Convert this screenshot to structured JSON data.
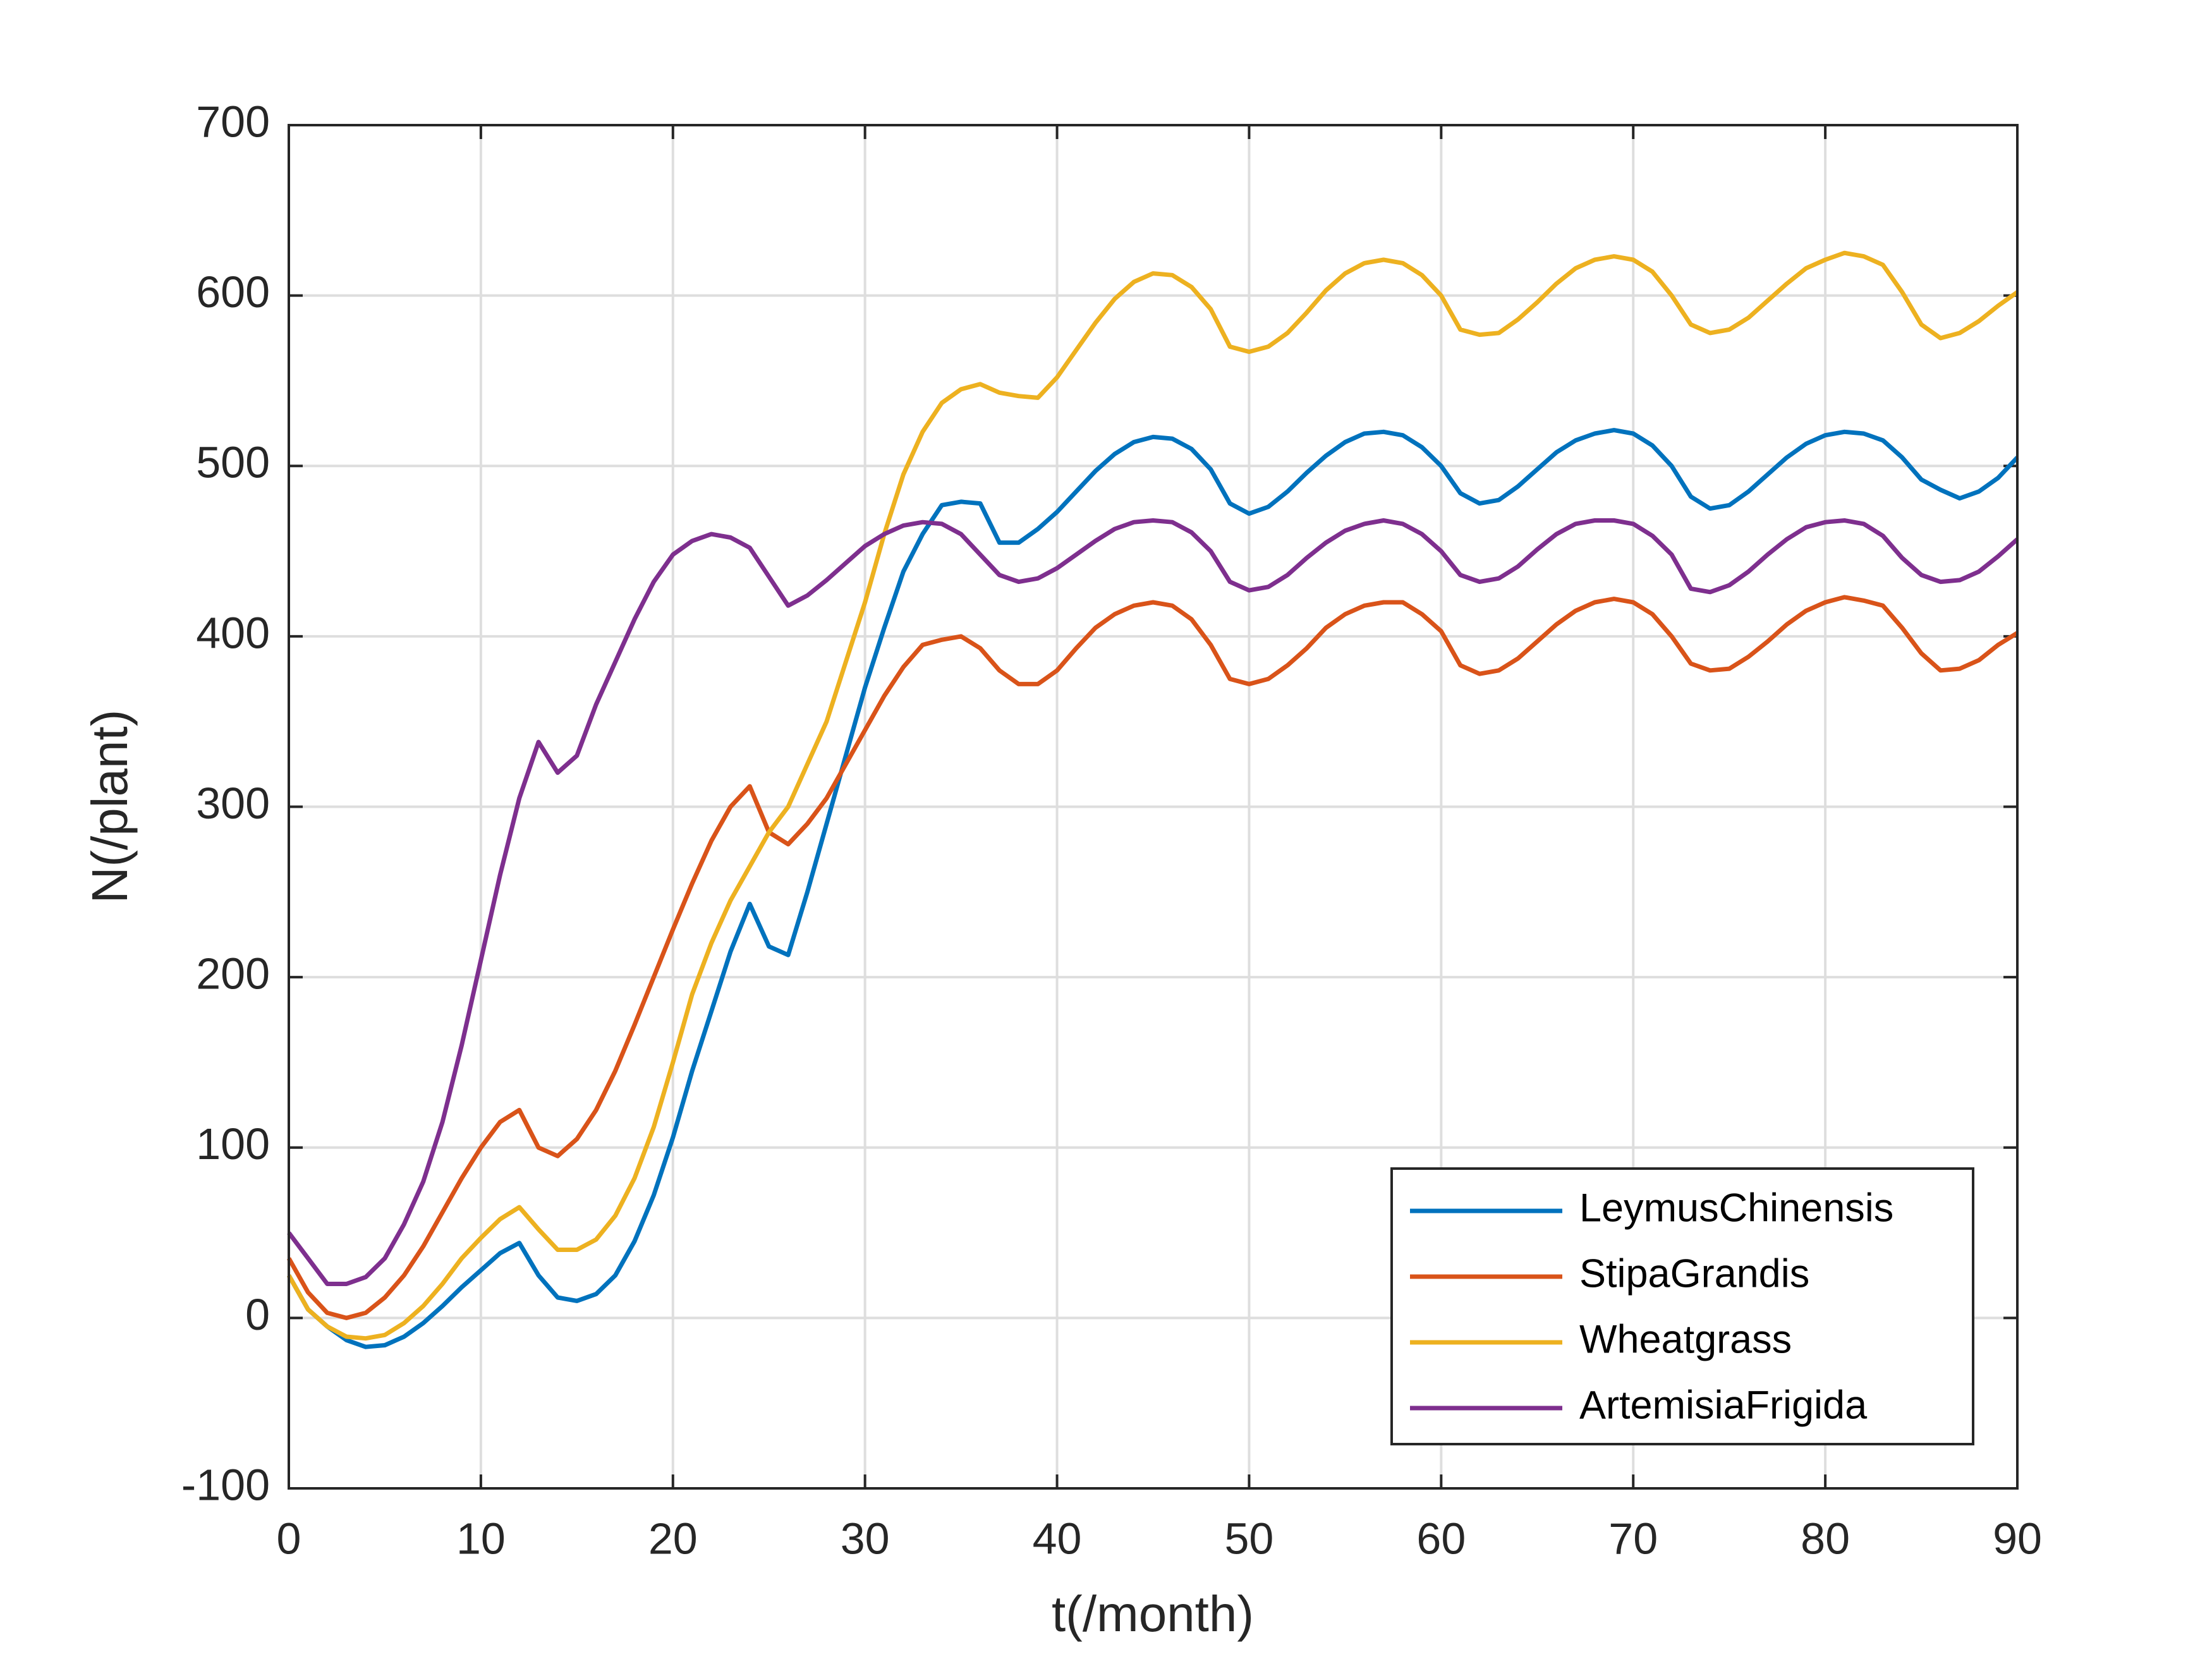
{
  "chart_data": {
    "type": "line",
    "xlabel": "t(/month)",
    "ylabel": "N(/plant)",
    "x": [
      0,
      1,
      2,
      3,
      4,
      5,
      6,
      7,
      8,
      9,
      10,
      11,
      12,
      13,
      14,
      15,
      16,
      17,
      18,
      19,
      20,
      21,
      22,
      23,
      24,
      25,
      26,
      27,
      28,
      29,
      30,
      31,
      32,
      33,
      34,
      35,
      36,
      37,
      38,
      39,
      40,
      41,
      42,
      43,
      44,
      45,
      46,
      47,
      48,
      49,
      50,
      51,
      52,
      53,
      54,
      55,
      56,
      57,
      58,
      59,
      60,
      61,
      62,
      63,
      64,
      65,
      66,
      67,
      68,
      69,
      70,
      71,
      72,
      73,
      74,
      75,
      76,
      77,
      78,
      79,
      80,
      81,
      82,
      83,
      84,
      85,
      86,
      87,
      88,
      89,
      90
    ],
    "series": [
      {
        "name": "LeymusChinensis",
        "color": "#0072BD",
        "values": [
          25,
          5,
          -5,
          -13,
          -17,
          -16,
          -11,
          -3,
          7,
          18,
          28,
          38,
          44,
          25,
          12,
          10,
          14,
          25,
          45,
          72,
          106,
          145,
          180,
          215,
          243,
          218,
          213,
          250,
          290,
          330,
          370,
          405,
          438,
          460,
          477,
          479,
          478,
          455,
          455,
          463,
          473,
          485,
          497,
          507,
          514,
          517,
          516,
          510,
          498,
          478,
          472,
          476,
          485,
          496,
          506,
          514,
          519,
          520,
          518,
          511,
          500,
          484,
          478,
          480,
          488,
          498,
          508,
          515,
          519,
          521,
          519,
          512,
          500,
          482,
          475,
          477,
          485,
          495,
          505,
          513,
          518,
          520,
          519,
          515,
          505,
          492,
          486,
          481,
          485,
          493,
          505
        ]
      },
      {
        "name": "StipaGrandis",
        "color": "#D95319",
        "values": [
          35,
          15,
          3,
          0,
          3,
          12,
          25,
          42,
          62,
          82,
          100,
          115,
          122,
          100,
          95,
          105,
          122,
          145,
          172,
          200,
          228,
          255,
          280,
          300,
          312,
          285,
          278,
          290,
          305,
          325,
          345,
          365,
          382,
          395,
          398,
          400,
          393,
          380,
          372,
          372,
          380,
          393,
          405,
          413,
          418,
          420,
          418,
          410,
          395,
          375,
          372,
          375,
          383,
          393,
          405,
          413,
          418,
          420,
          420,
          413,
          403,
          383,
          378,
          380,
          387,
          397,
          407,
          415,
          420,
          422,
          420,
          413,
          400,
          384,
          380,
          381,
          388,
          397,
          407,
          415,
          420,
          423,
          421,
          418,
          405,
          390,
          380,
          381,
          386,
          395,
          402
        ]
      },
      {
        "name": "Wheatgrass",
        "color": "#EDB120",
        "values": [
          25,
          5,
          -5,
          -11,
          -12,
          -10,
          -3,
          7,
          20,
          35,
          47,
          58,
          65,
          52,
          40,
          40,
          46,
          60,
          82,
          112,
          150,
          190,
          220,
          245,
          265,
          285,
          300,
          325,
          350,
          385,
          420,
          460,
          495,
          520,
          537,
          545,
          548,
          543,
          541,
          540,
          552,
          568,
          584,
          598,
          608,
          613,
          612,
          605,
          592,
          570,
          567,
          570,
          578,
          590,
          603,
          613,
          619,
          621,
          619,
          612,
          600,
          580,
          577,
          578,
          586,
          596,
          607,
          616,
          621,
          623,
          621,
          614,
          600,
          583,
          578,
          580,
          587,
          597,
          607,
          616,
          621,
          625,
          623,
          618,
          602,
          583,
          575,
          578,
          585,
          594,
          602
        ]
      },
      {
        "name": "ArtemisiaFrigida",
        "color": "#7E2F8E",
        "values": [
          50,
          35,
          20,
          20,
          24,
          35,
          55,
          80,
          115,
          160,
          210,
          260,
          305,
          338,
          320,
          330,
          360,
          385,
          410,
          432,
          448,
          456,
          460,
          458,
          452,
          435,
          418,
          424,
          433,
          443,
          453,
          460,
          465,
          467,
          466,
          460,
          448,
          436,
          432,
          434,
          440,
          448,
          456,
          463,
          467,
          468,
          467,
          461,
          450,
          432,
          427,
          429,
          436,
          446,
          455,
          462,
          466,
          468,
          466,
          460,
          450,
          436,
          432,
          434,
          441,
          451,
          460,
          466,
          468,
          468,
          466,
          459,
          448,
          428,
          426,
          430,
          438,
          448,
          457,
          464,
          467,
          468,
          466,
          459,
          446,
          436,
          432,
          433,
          438,
          447,
          457
        ]
      }
    ],
    "xlim": [
      0,
      90
    ],
    "xticks": [
      0,
      10,
      20,
      30,
      40,
      50,
      60,
      70,
      80,
      90
    ],
    "ylim": [
      -100,
      700
    ],
    "yticks": [
      -100,
      0,
      100,
      200,
      300,
      400,
      500,
      600,
      700
    ],
    "grid": true,
    "legend": "southeast"
  }
}
